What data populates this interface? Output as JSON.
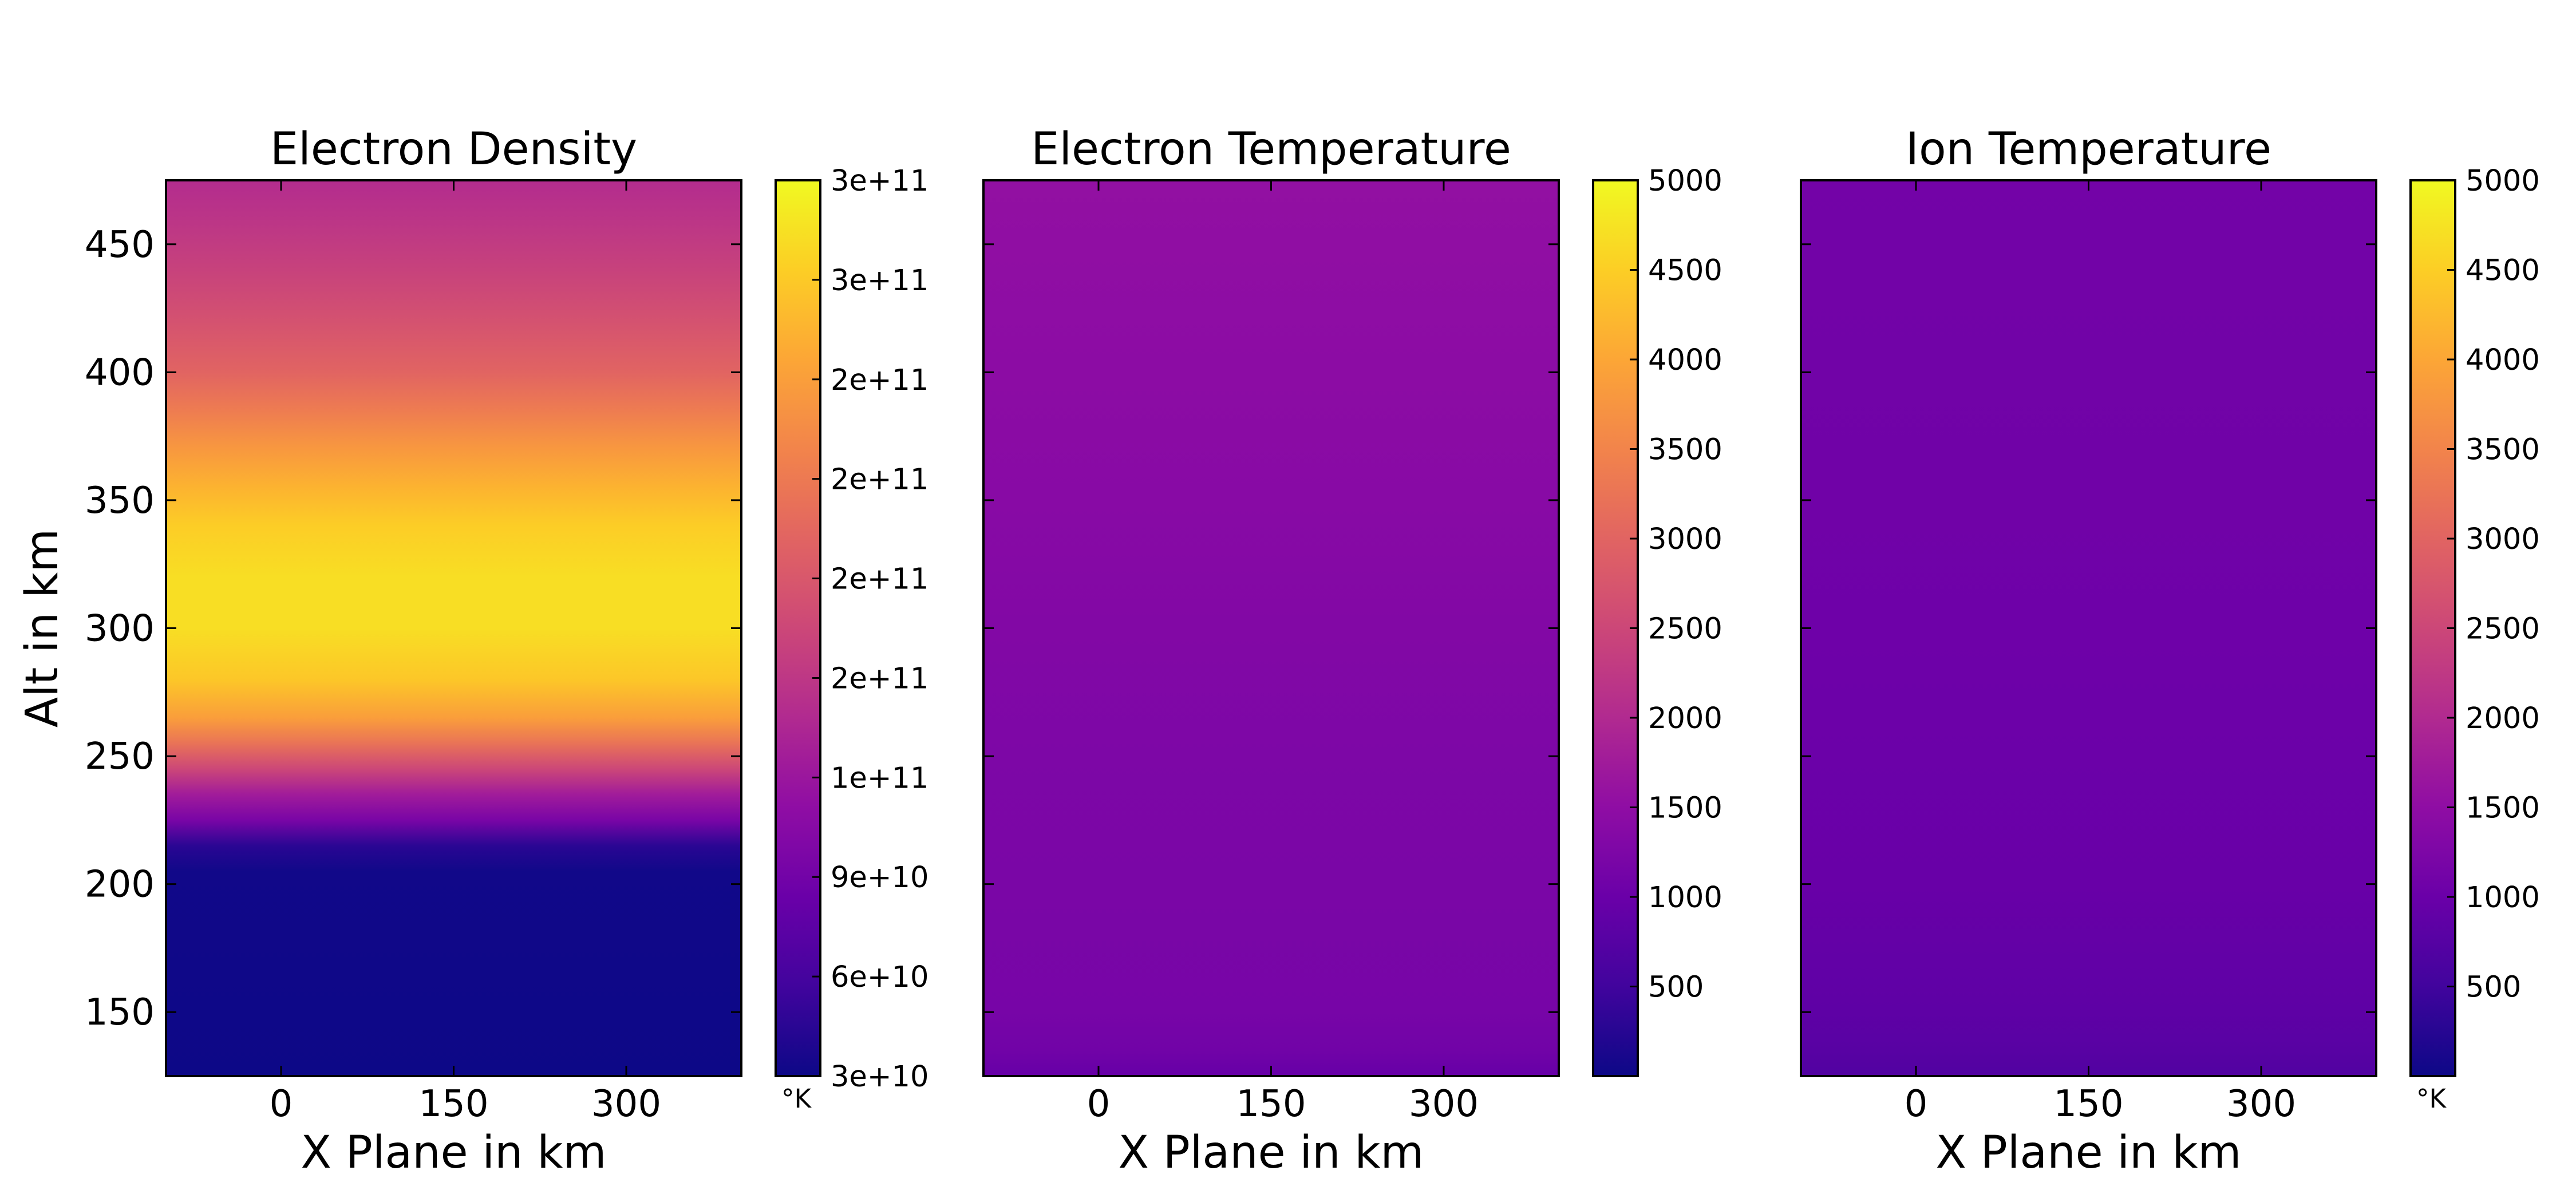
{
  "chart_data": [
    {
      "type": "heatmap",
      "title": "Electron Density",
      "xlabel": "X Plane in km",
      "ylabel": "Alt in km",
      "xlim": [
        -100,
        400
      ],
      "ylim": [
        125,
        475
      ],
      "x_ticks": [
        "0",
        "150",
        "300"
      ],
      "x_tick_values": [
        0,
        150,
        300
      ],
      "y_ticks": [
        "150",
        "200",
        "250",
        "300",
        "350",
        "400",
        "450"
      ],
      "y_tick_values": [
        150,
        200,
        250,
        300,
        350,
        400,
        450
      ],
      "colormap": "plasma",
      "vmin": 30000000000,
      "vmax": 300000000000,
      "colorbar_ticks": [
        "3e+10",
        "6e+10",
        "9e+10",
        "1e+11",
        "2e+11",
        "2e+11",
        "2e+11",
        "2e+11",
        "3e+11",
        "3e+11"
      ],
      "colorbar_unit": "°K",
      "profile": {
        "altitude": [
          125,
          205,
          215,
          225,
          235,
          245,
          255,
          265,
          280,
          300,
          320,
          340,
          355,
          370,
          385,
          400,
          420,
          440,
          460,
          475
        ],
        "value": [
          30000000000,
          32000000000,
          45000000000,
          95000000000,
          125000000000,
          165000000000,
          205000000000,
          240000000000,
          268000000000,
          283000000000,
          283000000000,
          272000000000,
          255000000000,
          235000000000,
          212000000000,
          192000000000,
          175000000000,
          160000000000,
          148000000000,
          140000000000
        ]
      }
    },
    {
      "type": "heatmap",
      "title": "Electron Temperature",
      "xlabel": "X Plane in km",
      "ylabel": "",
      "xlim": [
        -100,
        400
      ],
      "ylim": [
        125,
        475
      ],
      "x_ticks": [
        "0",
        "150",
        "300"
      ],
      "x_tick_values": [
        0,
        150,
        300
      ],
      "y_ticks": [],
      "y_tick_values": [
        150,
        200,
        250,
        300,
        350,
        400,
        450
      ],
      "colormap": "plasma",
      "vmin": 0,
      "vmax": 5000,
      "colorbar_ticks": [
        "500",
        "1000",
        "1500",
        "2000",
        "2500",
        "3000",
        "3500",
        "4000",
        "4500",
        "5000"
      ],
      "colorbar_unit": "",
      "profile": {
        "altitude": [
          125,
          135,
          150,
          200,
          250,
          300,
          350,
          400,
          450,
          475
        ],
        "value": [
          950,
          1100,
          1180,
          1220,
          1260,
          1320,
          1400,
          1460,
          1520,
          1550
        ]
      }
    },
    {
      "type": "heatmap",
      "title": "Ion Temperature",
      "xlabel": "X Plane in km",
      "ylabel": "",
      "xlim": [
        -100,
        400
      ],
      "ylim": [
        125,
        475
      ],
      "x_ticks": [
        "0",
        "150",
        "300"
      ],
      "x_tick_values": [
        0,
        150,
        300
      ],
      "y_ticks": [],
      "y_tick_values": [
        150,
        200,
        250,
        300,
        350,
        400,
        450
      ],
      "colormap": "plasma",
      "vmin": 0,
      "vmax": 5000,
      "colorbar_ticks": [
        "500",
        "1000",
        "1500",
        "2000",
        "2500",
        "3000",
        "3500",
        "4000",
        "4500",
        "5000"
      ],
      "colorbar_unit": "°K",
      "profile": {
        "altitude": [
          125,
          135,
          150,
          175,
          200,
          250,
          300,
          350,
          400,
          450,
          475
        ],
        "value": [
          700,
          780,
          850,
          920,
          970,
          1020,
          1050,
          1080,
          1100,
          1110,
          1115
        ]
      }
    }
  ]
}
